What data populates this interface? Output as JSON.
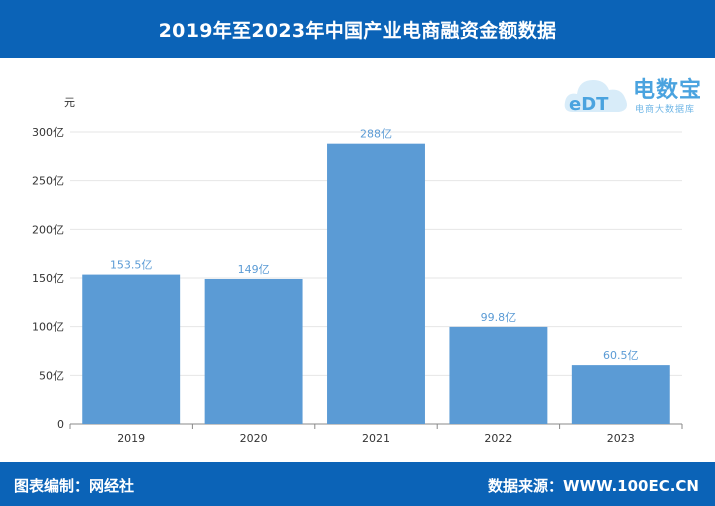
{
  "header": {
    "title": "2019年至2023年中国产业电商融资金额数据"
  },
  "logo": {
    "main": "电数宝",
    "sub": "电商大数据库",
    "mark": "eDT"
  },
  "footer": {
    "left": "图表编制：网经社",
    "right": "数据来源：WWW.100EC.CN"
  },
  "colors": {
    "header_bg": "#0b63b7",
    "bar": "#5b9bd5",
    "data_label": "#5b9bd5",
    "grid": "#e6e6e6"
  },
  "chart_data": {
    "type": "bar",
    "title": "2019年至2023年中国产业电商融资金额数据",
    "ylabel": "元",
    "categories": [
      "2019",
      "2020",
      "2021",
      "2022",
      "2023"
    ],
    "values": [
      153.5,
      149,
      288,
      99.8,
      60.5
    ],
    "data_labels": [
      "153.5亿",
      "149亿",
      "288亿",
      "99.8亿",
      "60.5亿"
    ],
    "yticks": [
      0,
      50,
      100,
      150,
      200,
      250,
      300
    ],
    "ytick_labels": [
      "0",
      "50亿",
      "100亿",
      "150亿",
      "200亿",
      "250亿",
      "300亿"
    ],
    "ylim": [
      0,
      300
    ],
    "grid": true
  }
}
